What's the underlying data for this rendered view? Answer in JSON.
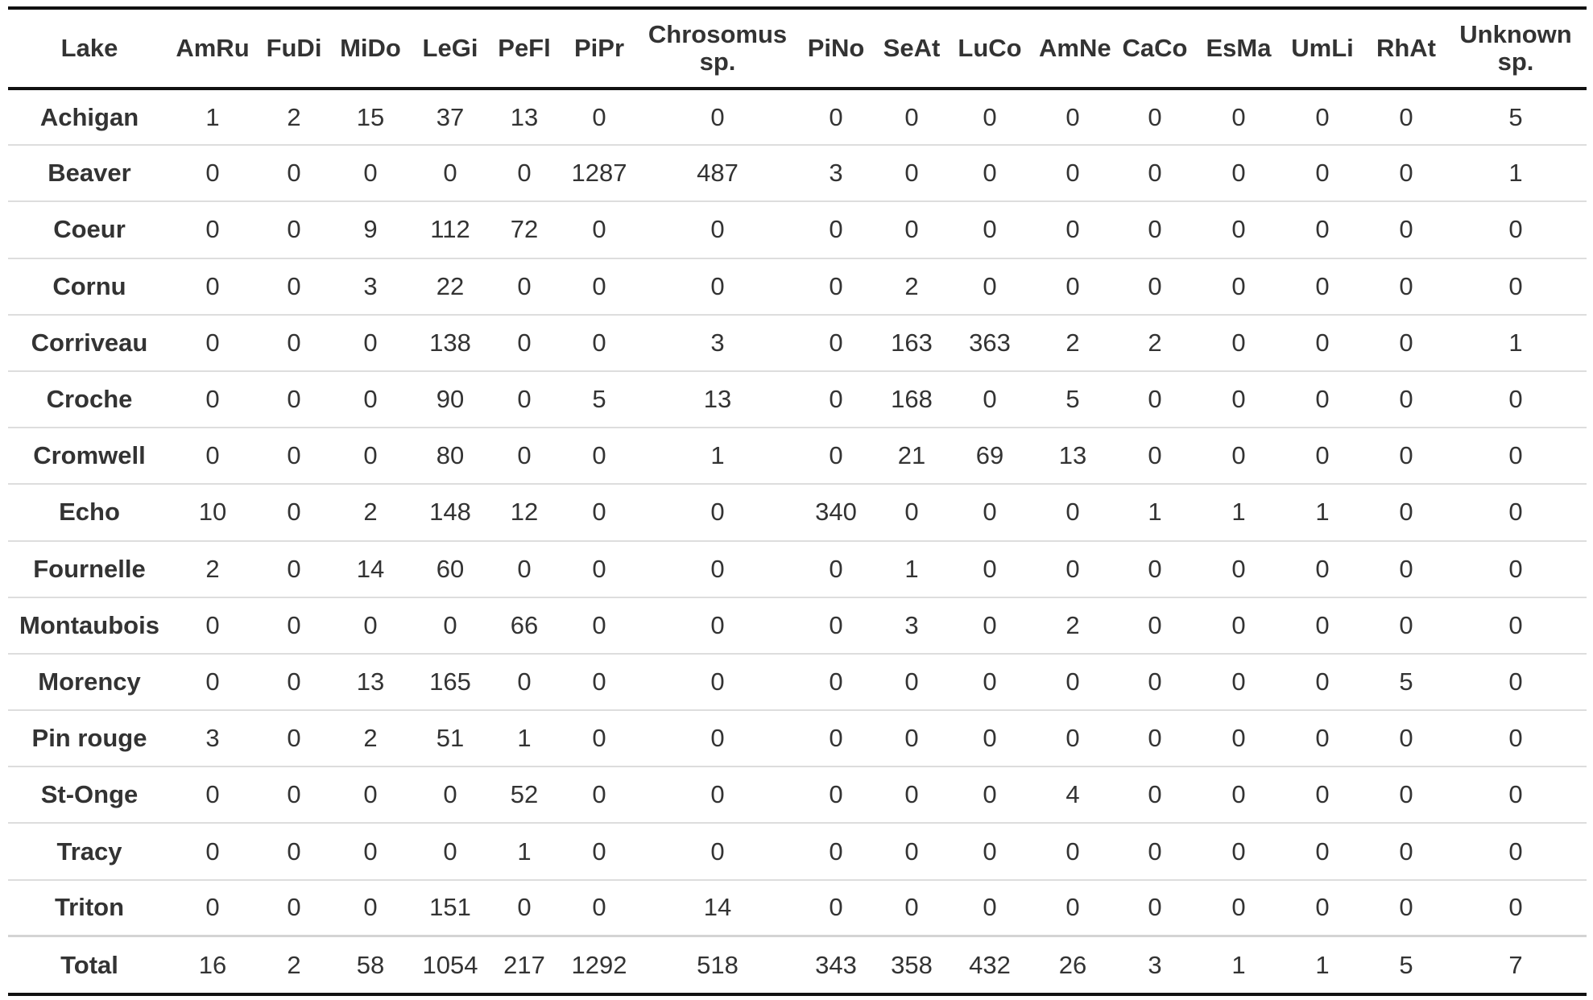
{
  "columns": [
    "Lake",
    "AmRu",
    "FuDi",
    "MiDo",
    "LeGi",
    "PeFl",
    "PiPr",
    "Chrosomus sp.",
    "PiNo",
    "SeAt",
    "LuCo",
    "AmNe",
    "CaCo",
    "EsMa",
    "UmLi",
    "RhAt",
    "Unknown sp."
  ],
  "rows": [
    [
      "Achigan",
      "1",
      "2",
      "15",
      "37",
      "13",
      "0",
      "0",
      "0",
      "0",
      "0",
      "0",
      "0",
      "0",
      "0",
      "0",
      "5"
    ],
    [
      "Beaver",
      "0",
      "0",
      "0",
      "0",
      "0",
      "1287",
      "487",
      "3",
      "0",
      "0",
      "0",
      "0",
      "0",
      "0",
      "0",
      "1"
    ],
    [
      "Coeur",
      "0",
      "0",
      "9",
      "112",
      "72",
      "0",
      "0",
      "0",
      "0",
      "0",
      "0",
      "0",
      "0",
      "0",
      "0",
      "0"
    ],
    [
      "Cornu",
      "0",
      "0",
      "3",
      "22",
      "0",
      "0",
      "0",
      "0",
      "2",
      "0",
      "0",
      "0",
      "0",
      "0",
      "0",
      "0"
    ],
    [
      "Corriveau",
      "0",
      "0",
      "0",
      "138",
      "0",
      "0",
      "3",
      "0",
      "163",
      "363",
      "2",
      "2",
      "0",
      "0",
      "0",
      "1"
    ],
    [
      "Croche",
      "0",
      "0",
      "0",
      "90",
      "0",
      "5",
      "13",
      "0",
      "168",
      "0",
      "5",
      "0",
      "0",
      "0",
      "0",
      "0"
    ],
    [
      "Cromwell",
      "0",
      "0",
      "0",
      "80",
      "0",
      "0",
      "1",
      "0",
      "21",
      "69",
      "13",
      "0",
      "0",
      "0",
      "0",
      "0"
    ],
    [
      "Echo",
      "10",
      "0",
      "2",
      "148",
      "12",
      "0",
      "0",
      "340",
      "0",
      "0",
      "0",
      "1",
      "1",
      "1",
      "0",
      "0"
    ],
    [
      "Fournelle",
      "2",
      "0",
      "14",
      "60",
      "0",
      "0",
      "0",
      "0",
      "1",
      "0",
      "0",
      "0",
      "0",
      "0",
      "0",
      "0"
    ],
    [
      "Montaubois",
      "0",
      "0",
      "0",
      "0",
      "66",
      "0",
      "0",
      "0",
      "3",
      "0",
      "2",
      "0",
      "0",
      "0",
      "0",
      "0"
    ],
    [
      "Morency",
      "0",
      "0",
      "13",
      "165",
      "0",
      "0",
      "0",
      "0",
      "0",
      "0",
      "0",
      "0",
      "0",
      "0",
      "5",
      "0"
    ],
    [
      "Pin rouge",
      "3",
      "0",
      "2",
      "51",
      "1",
      "0",
      "0",
      "0",
      "0",
      "0",
      "0",
      "0",
      "0",
      "0",
      "0",
      "0"
    ],
    [
      "St-Onge",
      "0",
      "0",
      "0",
      "0",
      "52",
      "0",
      "0",
      "0",
      "0",
      "0",
      "4",
      "0",
      "0",
      "0",
      "0",
      "0"
    ],
    [
      "Tracy",
      "0",
      "0",
      "0",
      "0",
      "1",
      "0",
      "0",
      "0",
      "0",
      "0",
      "0",
      "0",
      "0",
      "0",
      "0",
      "0"
    ],
    [
      "Triton",
      "0",
      "0",
      "0",
      "151",
      "0",
      "0",
      "14",
      "0",
      "0",
      "0",
      "0",
      "0",
      "0",
      "0",
      "0",
      "0"
    ]
  ],
  "total": [
    "Total",
    "16",
    "2",
    "58",
    "1054",
    "217",
    "1292",
    "518",
    "343",
    "358",
    "432",
    "26",
    "3",
    "1",
    "1",
    "5",
    "7"
  ]
}
